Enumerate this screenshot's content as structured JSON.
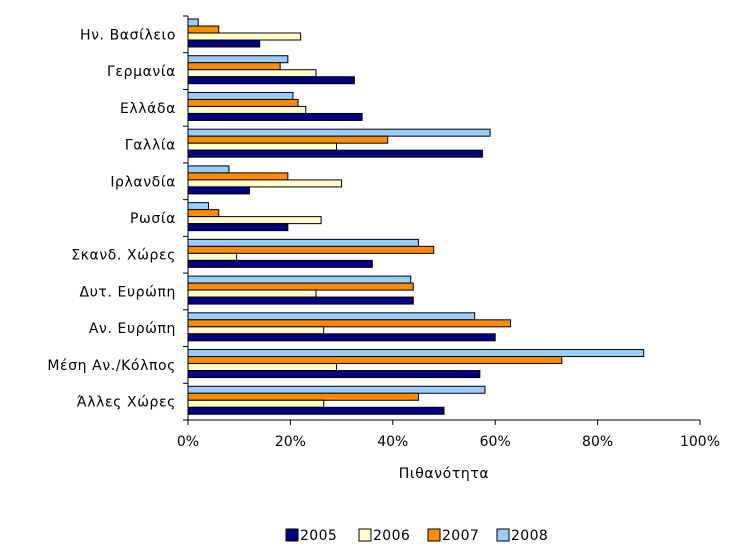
{
  "chart_data": {
    "type": "bar",
    "orientation": "horizontal",
    "title": "",
    "xlabel": "Πιθανότητα",
    "ylabel": "",
    "xlim": [
      0,
      100
    ],
    "x_tick_labels": [
      "0%",
      "20%",
      "40%",
      "60%",
      "80%",
      "100%"
    ],
    "grid": false,
    "legend_position": "bottom",
    "categories": [
      "Ην. Βασίλειο",
      "Γερμανία",
      "Ελλάδα",
      "Γαλλία",
      "Ιρλανδία",
      "Ρωσία",
      "Σκανδ. Χώρες",
      "Δυτ. Ευρώπη",
      "Αν. Ευρώπη",
      "Μέση Αν./Κόλπος",
      "Άλλες Χώρες"
    ],
    "series": [
      {
        "name": "2005",
        "color": "#000080",
        "values": [
          14,
          32.5,
          34,
          57.5,
          12,
          19.5,
          36,
          44,
          60,
          57,
          50
        ]
      },
      {
        "name": "2006",
        "color": "#FFFFCC",
        "values": [
          22,
          25,
          23,
          29,
          30,
          26,
          9.5,
          25,
          26.5,
          29,
          26.5
        ]
      },
      {
        "name": "2007",
        "color": "#FF8C00",
        "values": [
          6,
          18,
          21.5,
          39,
          19.5,
          6,
          48,
          44,
          63,
          73,
          45
        ]
      },
      {
        "name": "2008",
        "color": "#99CCFF",
        "values": [
          2,
          19.5,
          20.5,
          59,
          8,
          4,
          45,
          43.5,
          56,
          89,
          58
        ]
      }
    ]
  }
}
